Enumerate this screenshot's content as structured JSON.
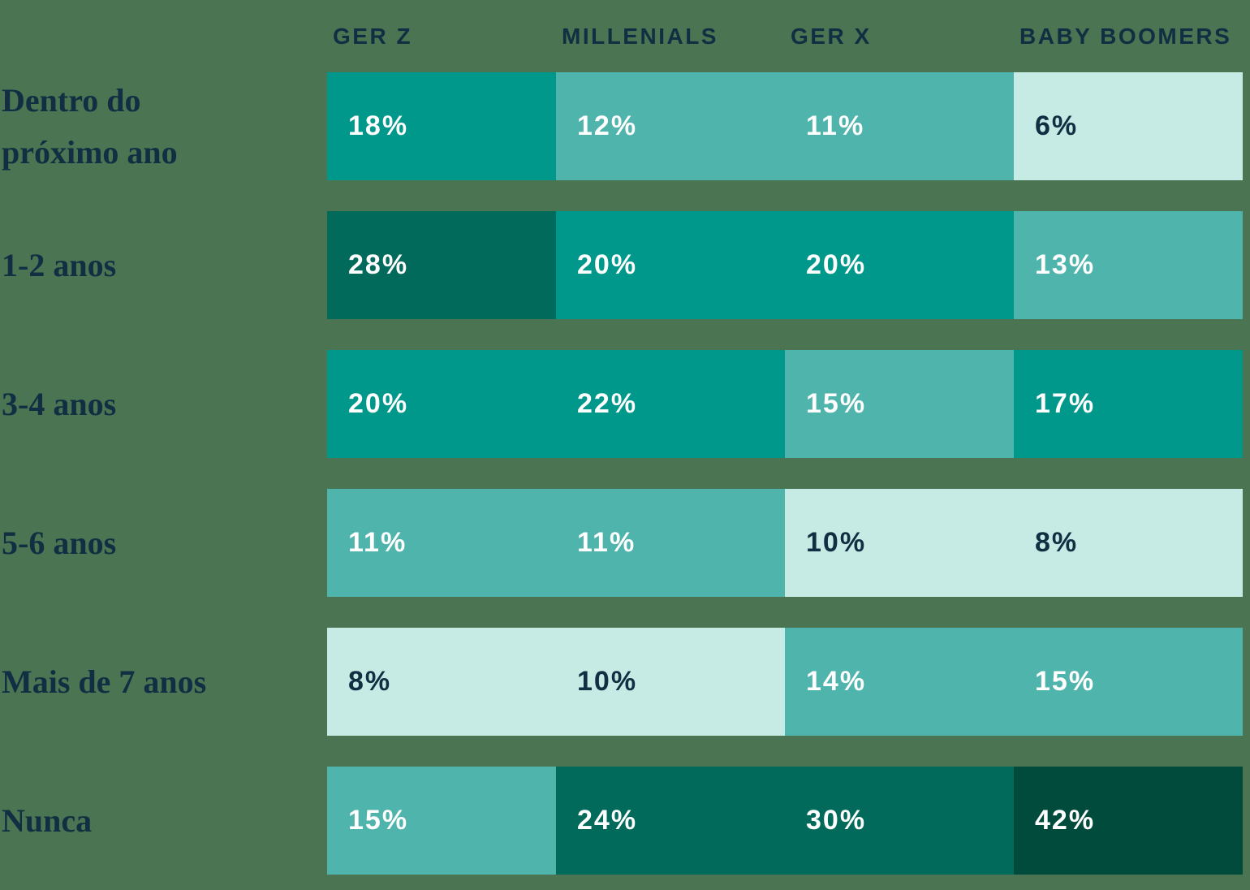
{
  "colors": {
    "background": "#4A7452",
    "header_text": "#122E42",
    "label_text": "#122E42",
    "cell_text_light": "#FFFFFF",
    "cell_text_dark": "#122E42",
    "palette": {
      "darkest": "#004B3C",
      "dark": "#016A5B",
      "medium": "#00988A",
      "light": "#4FB5AC",
      "lightest": "#C6EBE5"
    }
  },
  "chart_data": {
    "type": "heatmap",
    "unit": "%",
    "column_headers_position": "top",
    "row_labels_position": "left",
    "legend": "none",
    "grid": "off",
    "categories": [
      "GER Z",
      "MILLENIALS",
      "GER X",
      "BABY BOOMERS"
    ],
    "rows": [
      {
        "label": "Dentro do próximo ano",
        "values": [
          18,
          12,
          11,
          6
        ],
        "cells": [
          {
            "text": "18%",
            "shade": "medium"
          },
          {
            "text": "12%",
            "shade": "light"
          },
          {
            "text": "11%",
            "shade": "light"
          },
          {
            "text": "6%",
            "shade": "lightest"
          }
        ]
      },
      {
        "label": "1-2 anos",
        "values": [
          28,
          20,
          20,
          13
        ],
        "cells": [
          {
            "text": "28%",
            "shade": "dark"
          },
          {
            "text": "20%",
            "shade": "medium"
          },
          {
            "text": "20%",
            "shade": "medium"
          },
          {
            "text": "13%",
            "shade": "light"
          }
        ]
      },
      {
        "label": "3-4 anos",
        "values": [
          20,
          22,
          15,
          17
        ],
        "cells": [
          {
            "text": "20%",
            "shade": "medium"
          },
          {
            "text": "22%",
            "shade": "medium"
          },
          {
            "text": "15%",
            "shade": "light"
          },
          {
            "text": "17%",
            "shade": "medium"
          }
        ]
      },
      {
        "label": "5-6 anos",
        "values": [
          11,
          11,
          10,
          8
        ],
        "cells": [
          {
            "text": "11%",
            "shade": "light"
          },
          {
            "text": "11%",
            "shade": "light"
          },
          {
            "text": "10%",
            "shade": "lightest"
          },
          {
            "text": "8%",
            "shade": "lightest"
          }
        ]
      },
      {
        "label": "Mais de 7 anos",
        "values": [
          8,
          10,
          14,
          15
        ],
        "cells": [
          {
            "text": "8%",
            "shade": "lightest"
          },
          {
            "text": "10%",
            "shade": "lightest"
          },
          {
            "text": "14%",
            "shade": "light"
          },
          {
            "text": "15%",
            "shade": "light"
          }
        ]
      },
      {
        "label": "Nunca",
        "values": [
          15,
          24,
          30,
          42
        ],
        "cells": [
          {
            "text": "15%",
            "shade": "light"
          },
          {
            "text": "24%",
            "shade": "dark"
          },
          {
            "text": "30%",
            "shade": "dark"
          },
          {
            "text": "42%",
            "shade": "darkest"
          }
        ]
      }
    ]
  }
}
